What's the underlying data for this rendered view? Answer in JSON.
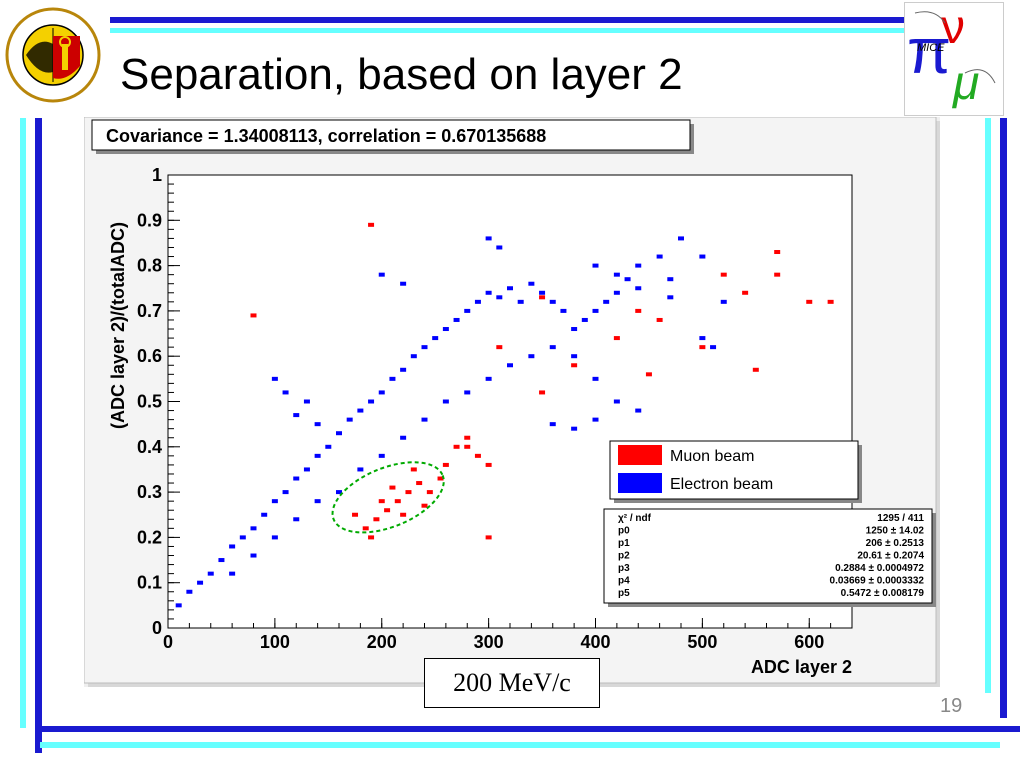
{
  "slide": {
    "title": "Separation, based on layer 2",
    "page_number": "19",
    "caption": "200 MeV/c",
    "accent_dark": "#1a1ad0",
    "accent_light": "#66ffff"
  },
  "logos": {
    "left": {
      "name": "universite-de-geneve-seal",
      "text": "SCHOLA GENEVENSIS 1559"
    },
    "right": {
      "name": "mice-logo",
      "text": "MICE"
    }
  },
  "chart_data": {
    "type": "scatter",
    "title": "Covariance = 1.34008113, correlation = 0.670135688",
    "xlabel": "ADC layer 2",
    "ylabel": "(ADC layer 2)/(totalADC)",
    "xlim": [
      0,
      640
    ],
    "ylim": [
      0,
      1
    ],
    "x_ticks": [
      0,
      100,
      200,
      300,
      400,
      500,
      600
    ],
    "y_ticks": [
      "0",
      "0.1",
      "0.2",
      "0.3",
      "0.4",
      "0.5",
      "0.6",
      "0.7",
      "0.8",
      "0.9",
      "1"
    ],
    "grid": false,
    "legend_position": "right",
    "series": [
      {
        "name": "Muon beam",
        "color": "#ff0000",
        "points": [
          [
            185,
            0.22
          ],
          [
            195,
            0.24
          ],
          [
            205,
            0.26
          ],
          [
            215,
            0.28
          ],
          [
            225,
            0.3
          ],
          [
            235,
            0.32
          ],
          [
            245,
            0.3
          ],
          [
            255,
            0.33
          ],
          [
            210,
            0.31
          ],
          [
            200,
            0.28
          ],
          [
            220,
            0.25
          ],
          [
            240,
            0.27
          ],
          [
            230,
            0.35
          ],
          [
            260,
            0.36
          ],
          [
            270,
            0.4
          ],
          [
            280,
            0.42
          ],
          [
            290,
            0.38
          ],
          [
            300,
            0.36
          ],
          [
            175,
            0.25
          ],
          [
            190,
            0.2
          ],
          [
            350,
            0.52
          ],
          [
            380,
            0.58
          ],
          [
            420,
            0.64
          ],
          [
            440,
            0.7
          ],
          [
            460,
            0.68
          ],
          [
            520,
            0.78
          ],
          [
            540,
            0.74
          ],
          [
            570,
            0.78
          ],
          [
            600,
            0.72
          ],
          [
            620,
            0.72
          ],
          [
            80,
            0.69
          ],
          [
            190,
            0.89
          ],
          [
            280,
            0.4
          ],
          [
            300,
            0.2
          ],
          [
            550,
            0.57
          ],
          [
            570,
            0.83
          ],
          [
            310,
            0.62
          ],
          [
            350,
            0.73
          ],
          [
            450,
            0.56
          ],
          [
            500,
            0.62
          ]
        ]
      },
      {
        "name": "Electron beam",
        "color": "#0000ff",
        "points": [
          [
            10,
            0.05
          ],
          [
            20,
            0.08
          ],
          [
            30,
            0.1
          ],
          [
            40,
            0.12
          ],
          [
            50,
            0.15
          ],
          [
            60,
            0.18
          ],
          [
            70,
            0.2
          ],
          [
            80,
            0.22
          ],
          [
            90,
            0.25
          ],
          [
            100,
            0.28
          ],
          [
            110,
            0.3
          ],
          [
            120,
            0.33
          ],
          [
            130,
            0.35
          ],
          [
            140,
            0.38
          ],
          [
            150,
            0.4
          ],
          [
            160,
            0.43
          ],
          [
            170,
            0.46
          ],
          [
            180,
            0.48
          ],
          [
            190,
            0.5
          ],
          [
            200,
            0.52
          ],
          [
            210,
            0.55
          ],
          [
            220,
            0.57
          ],
          [
            230,
            0.6
          ],
          [
            240,
            0.62
          ],
          [
            250,
            0.64
          ],
          [
            260,
            0.66
          ],
          [
            270,
            0.68
          ],
          [
            280,
            0.7
          ],
          [
            290,
            0.72
          ],
          [
            300,
            0.74
          ],
          [
            310,
            0.73
          ],
          [
            320,
            0.75
          ],
          [
            330,
            0.72
          ],
          [
            340,
            0.76
          ],
          [
            350,
            0.74
          ],
          [
            360,
            0.72
          ],
          [
            370,
            0.7
          ],
          [
            380,
            0.66
          ],
          [
            390,
            0.68
          ],
          [
            400,
            0.7
          ],
          [
            410,
            0.72
          ],
          [
            420,
            0.74
          ],
          [
            430,
            0.77
          ],
          [
            440,
            0.8
          ],
          [
            460,
            0.82
          ],
          [
            480,
            0.86
          ],
          [
            500,
            0.82
          ],
          [
            520,
            0.72
          ],
          [
            510,
            0.62
          ],
          [
            60,
            0.12
          ],
          [
            80,
            0.16
          ],
          [
            100,
            0.2
          ],
          [
            120,
            0.24
          ],
          [
            140,
            0.28
          ],
          [
            160,
            0.3
          ],
          [
            180,
            0.35
          ],
          [
            200,
            0.38
          ],
          [
            220,
            0.42
          ],
          [
            240,
            0.46
          ],
          [
            260,
            0.5
          ],
          [
            280,
            0.52
          ],
          [
            300,
            0.55
          ],
          [
            320,
            0.58
          ],
          [
            340,
            0.6
          ],
          [
            360,
            0.62
          ],
          [
            380,
            0.6
          ],
          [
            400,
            0.55
          ],
          [
            420,
            0.5
          ],
          [
            440,
            0.48
          ],
          [
            360,
            0.45
          ],
          [
            380,
            0.44
          ],
          [
            400,
            0.46
          ],
          [
            100,
            0.55
          ],
          [
            110,
            0.52
          ],
          [
            120,
            0.47
          ],
          [
            130,
            0.5
          ],
          [
            140,
            0.45
          ],
          [
            200,
            0.78
          ],
          [
            220,
            0.76
          ],
          [
            300,
            0.86
          ],
          [
            310,
            0.84
          ],
          [
            400,
            0.8
          ],
          [
            420,
            0.78
          ],
          [
            440,
            0.75
          ],
          [
            470,
            0.77
          ],
          [
            470,
            0.73
          ],
          [
            500,
            0.64
          ]
        ]
      }
    ],
    "fit": {
      "type": "contour-ellipse",
      "color": "#00aa00",
      "stats": [
        {
          "name": "χ² / ndf",
          "value": "1295 / 411"
        },
        {
          "name": "p0",
          "value": "1250 ± 14.02"
        },
        {
          "name": "p1",
          "value": "206 ± 0.2513"
        },
        {
          "name": "p2",
          "value": "20.61 ± 0.2074"
        },
        {
          "name": "p3",
          "value": "0.2884 ± 0.0004972"
        },
        {
          "name": "p4",
          "value": "0.03669 ± 0.0003332"
        },
        {
          "name": "p5",
          "value": "0.5472 ± 0.008179"
        }
      ]
    }
  }
}
